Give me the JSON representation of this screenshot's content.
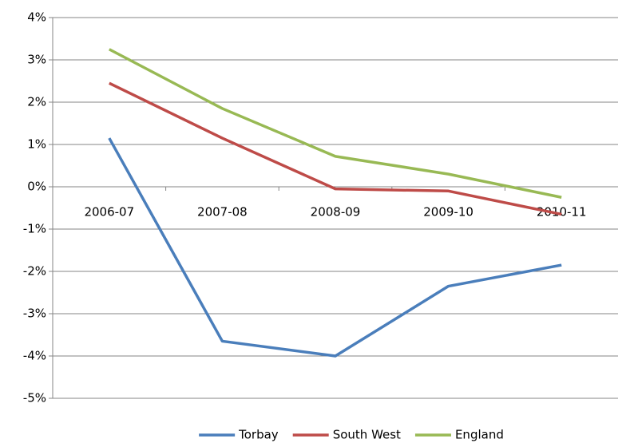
{
  "chart_data": {
    "type": "line",
    "categories": [
      "2006-07",
      "2007-08",
      "2008-09",
      "2009-10",
      "2010-11"
    ],
    "series": [
      {
        "name": "Torbay",
        "color": "#4a7ebb",
        "values": [
          1.15,
          -3.65,
          -4.0,
          -2.35,
          -1.85
        ]
      },
      {
        "name": "South West",
        "color": "#be4b48",
        "values": [
          2.45,
          1.15,
          -0.05,
          -0.1,
          -0.65
        ]
      },
      {
        "name": "England",
        "color": "#98b954",
        "values": [
          3.25,
          1.85,
          0.72,
          0.3,
          -0.25
        ]
      }
    ],
    "ylim": [
      -5,
      4
    ],
    "yticks": [
      {
        "value": -5,
        "label": "-5%"
      },
      {
        "value": -4,
        "label": "-4%"
      },
      {
        "value": -3,
        "label": "-3%"
      },
      {
        "value": -2,
        "label": "-2%"
      },
      {
        "value": -1,
        "label": "-1%"
      },
      {
        "value": 0,
        "label": "0%"
      },
      {
        "value": 1,
        "label": "1%"
      },
      {
        "value": 2,
        "label": "2%"
      },
      {
        "value": 3,
        "label": "3%"
      },
      {
        "value": 4,
        "label": "4%"
      }
    ],
    "grid": true,
    "legend": "bottom"
  }
}
